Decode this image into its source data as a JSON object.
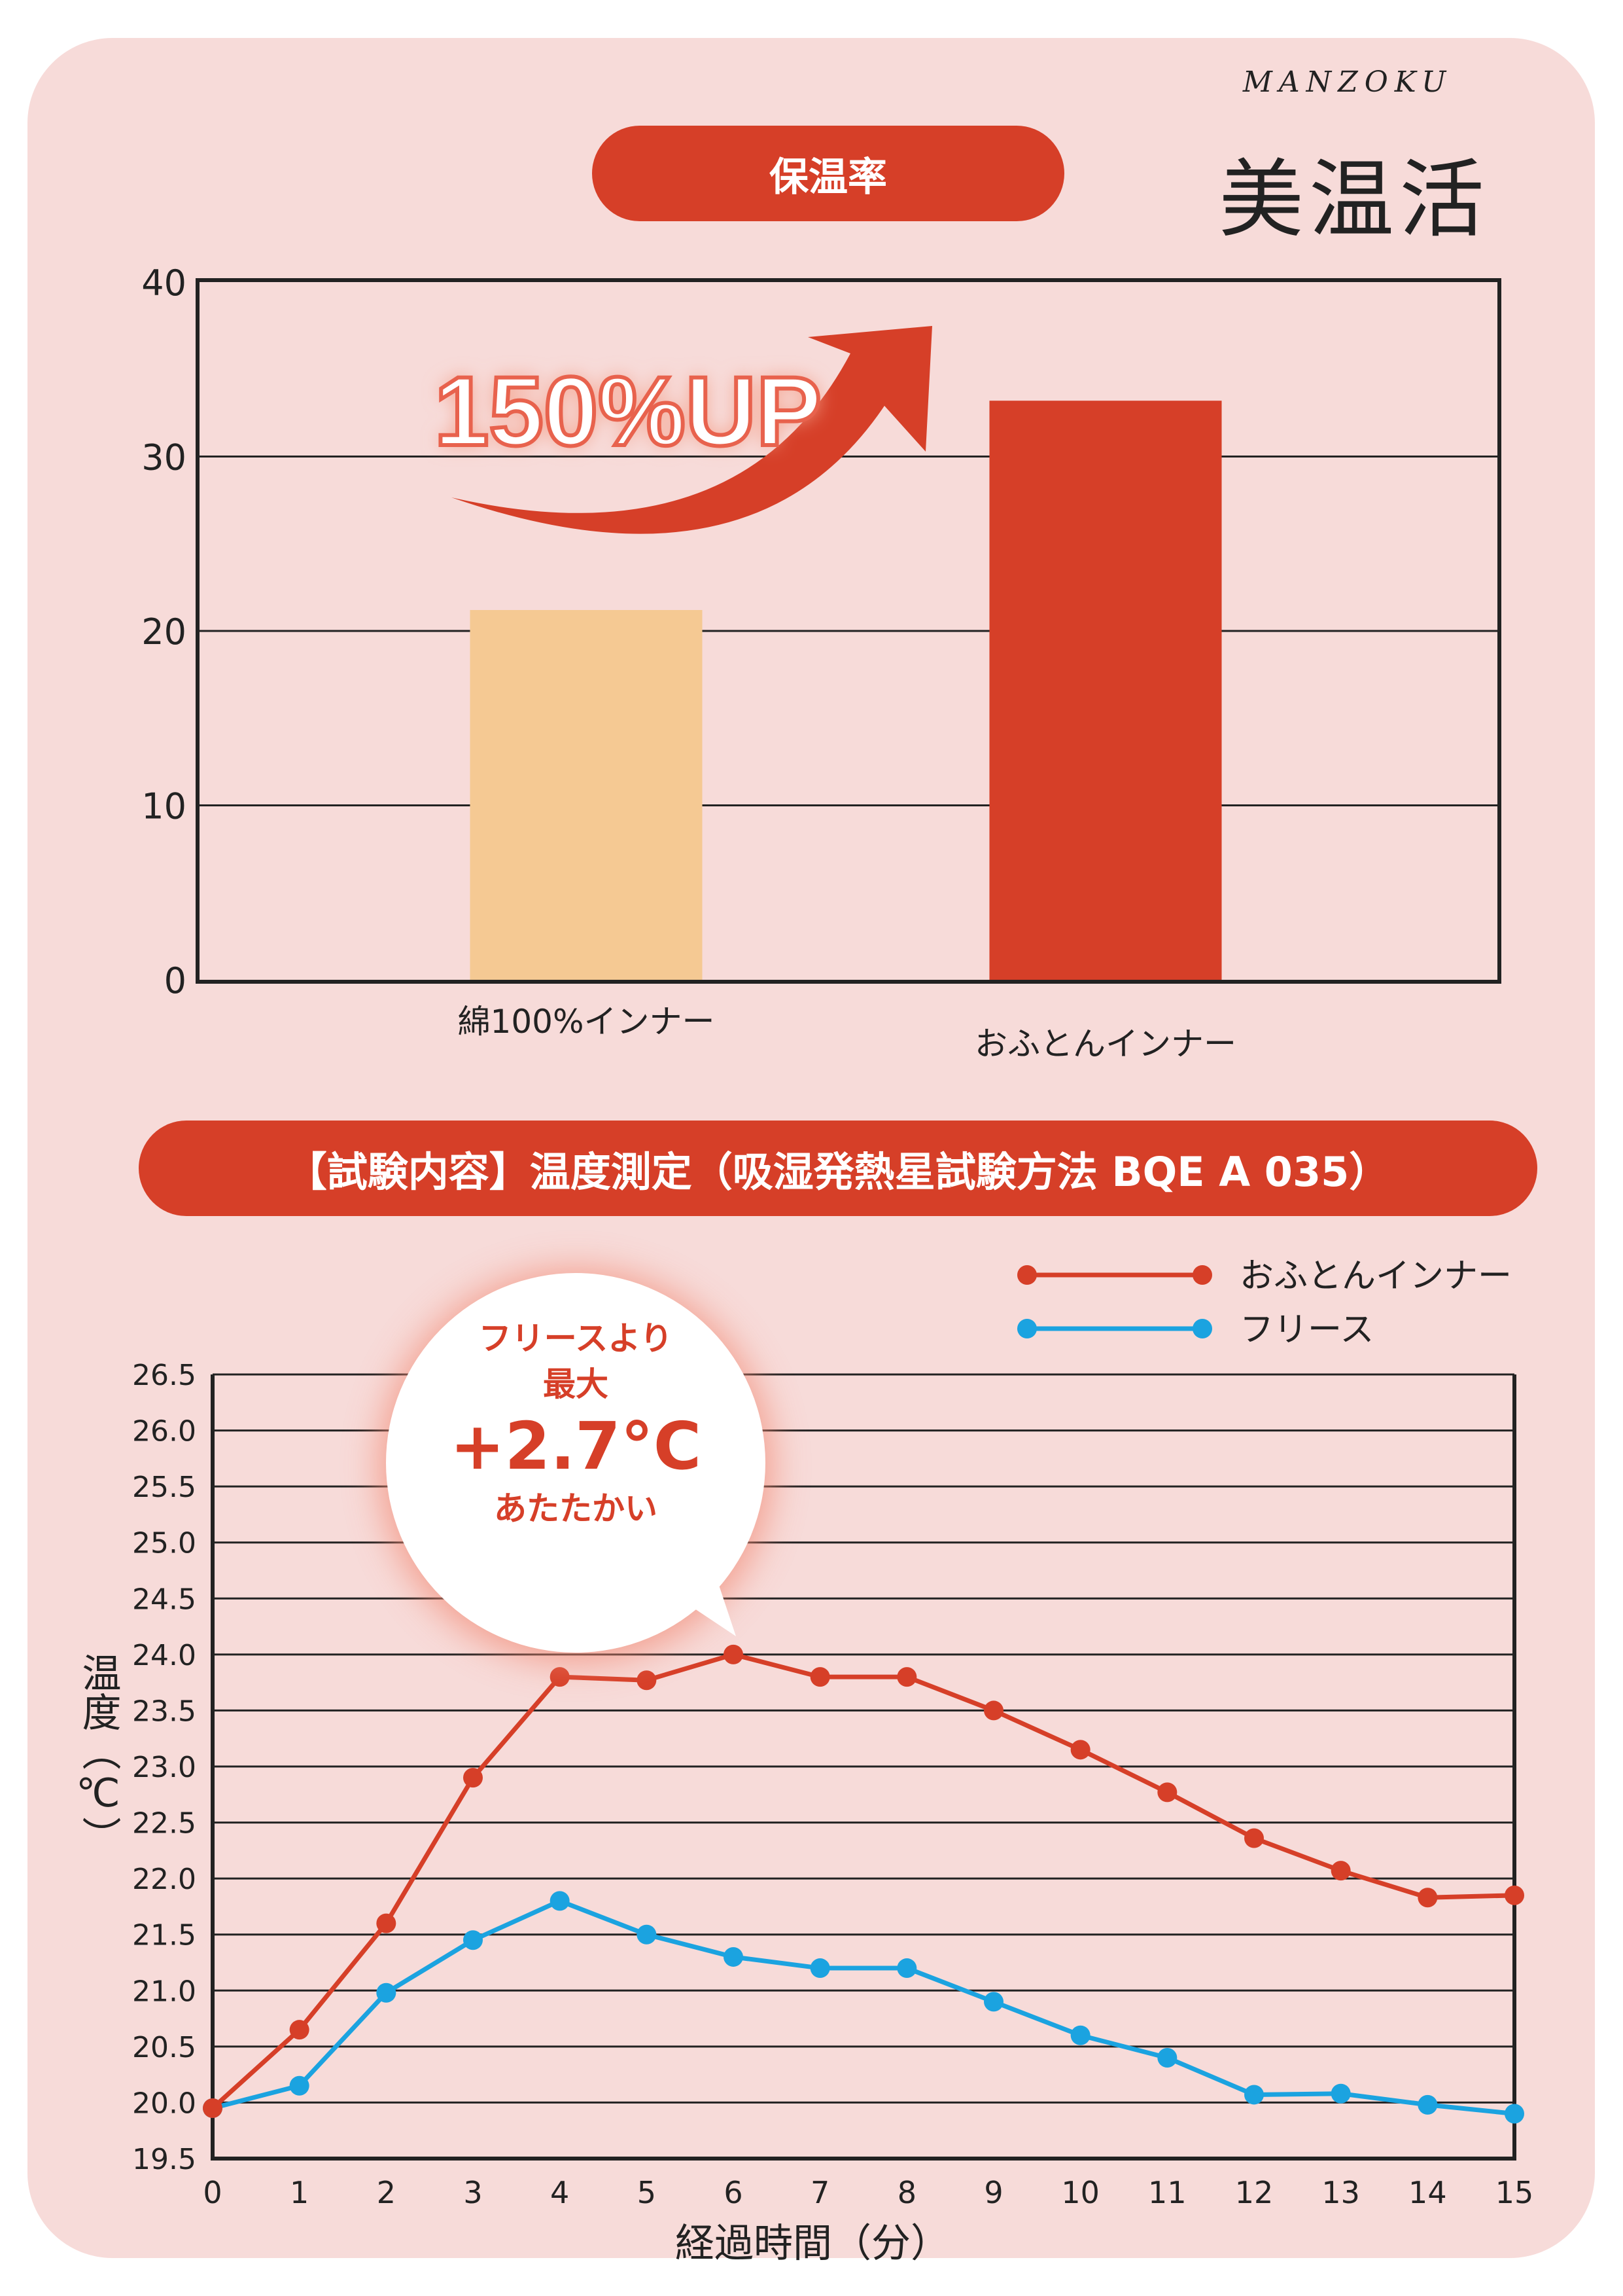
{
  "brand": {
    "logo_en": "MANZOKU",
    "logo_jp": "美温活"
  },
  "callout": {
    "text": "150%UP"
  },
  "bubble": {
    "line1": "フリースより",
    "line2": "最大",
    "line3": "+2.7°C",
    "line4": "あたたかい"
  },
  "colors": {
    "accent": "#d63f28",
    "cotton": "#f5c993",
    "fleece": "#1ba3e0",
    "background": "#f7dbd9"
  },
  "chart_data": [
    {
      "type": "bar",
      "title": "保温率",
      "categories": [
        "綿100%インナー",
        "おふとんインナー"
      ],
      "values": [
        21.2,
        33.2
      ],
      "yticks": [
        "0",
        "10",
        "20",
        "30",
        "40"
      ],
      "ylim": [
        0,
        40
      ],
      "grid": true
    },
    {
      "type": "line",
      "title": "【試験内容】温度測定（吸湿発熱星試験方法 BQE A 035）",
      "xlabel": "経過時間（分）",
      "ylabel": "温度（℃）",
      "x": [
        0,
        1,
        2,
        3,
        4,
        5,
        6,
        7,
        8,
        9,
        10,
        11,
        12,
        13,
        14,
        15
      ],
      "xticks": [
        "0",
        "1",
        "2",
        "3",
        "4",
        "5",
        "6",
        "7",
        "8",
        "9",
        "10",
        "11",
        "12",
        "13",
        "14",
        "15"
      ],
      "yticks": [
        "19.5",
        "20.0",
        "20.5",
        "21.0",
        "21.5",
        "22.0",
        "22.5",
        "23.0",
        "23.5",
        "24.0",
        "24.5",
        "25.0",
        "25.5",
        "26.0",
        "26.5"
      ],
      "ylim": [
        19.5,
        26.5
      ],
      "legend_position": "top-right",
      "grid": true,
      "series": [
        {
          "name": "おふとんインナー",
          "values": [
            19.95,
            20.65,
            21.6,
            22.9,
            23.8,
            23.77,
            24.0,
            23.8,
            23.8,
            23.5,
            23.15,
            22.77,
            22.36,
            22.07,
            21.83,
            21.85
          ]
        },
        {
          "name": "フリース",
          "values": [
            19.95,
            20.15,
            20.98,
            21.45,
            21.8,
            21.5,
            21.3,
            21.2,
            21.2,
            20.9,
            20.6,
            20.4,
            20.07,
            20.08,
            19.98,
            19.9
          ]
        }
      ]
    }
  ]
}
